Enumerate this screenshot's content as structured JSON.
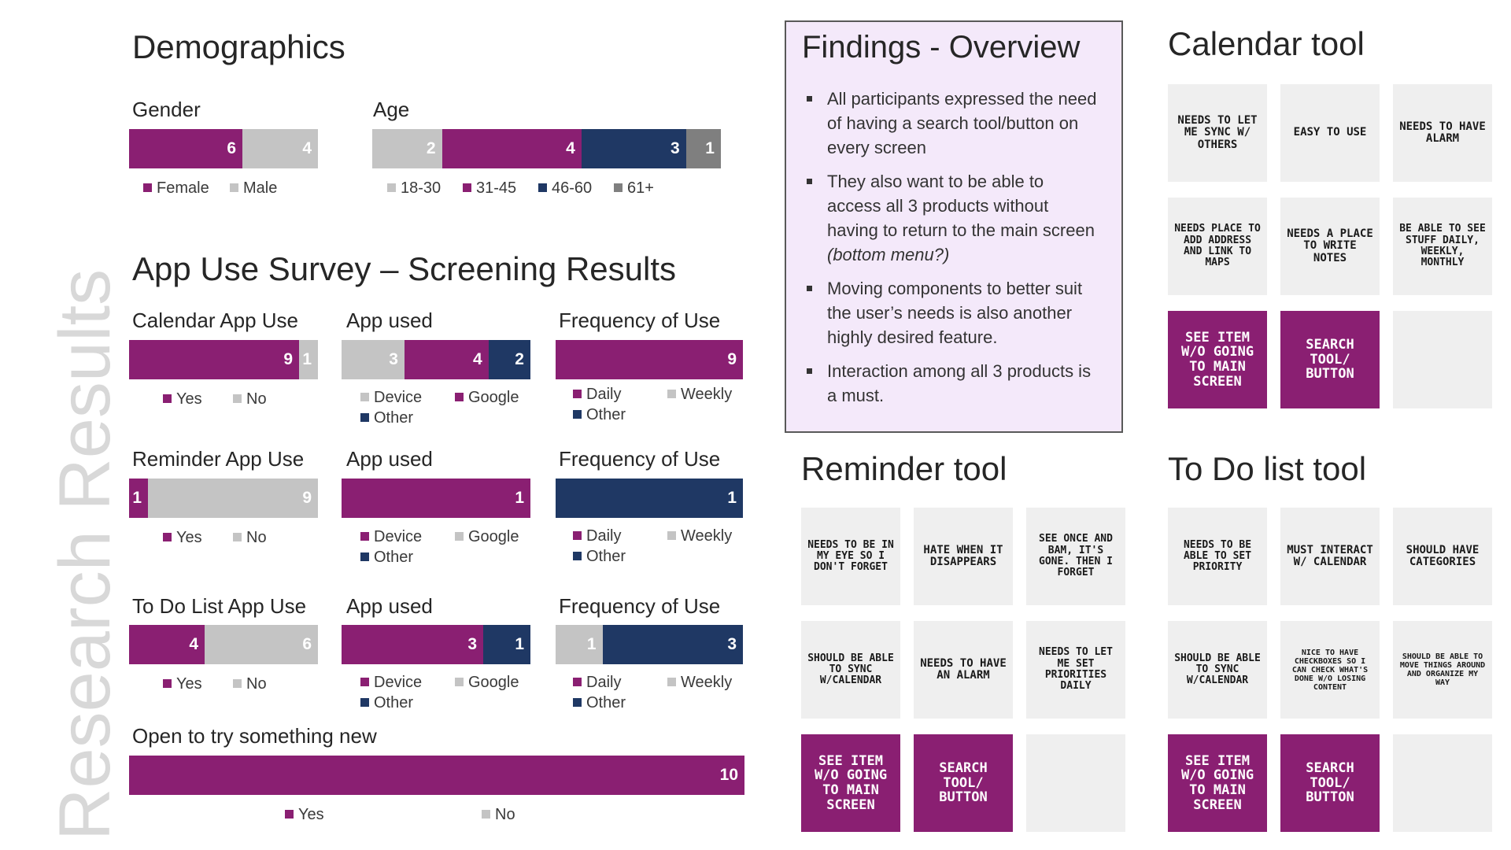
{
  "side_title": "Research Results",
  "demographics": {
    "title": "Demographics",
    "gender": {
      "label": "Gender",
      "segments": [
        {
          "name": "Female",
          "value": 6,
          "color": "#8a1f72"
        },
        {
          "name": "Male",
          "value": 4,
          "color": "#c4c4c4"
        }
      ]
    },
    "age": {
      "label": "Age",
      "segments": [
        {
          "name": "18-30",
          "value": 2,
          "color": "#c4c4c4"
        },
        {
          "name": "31-45",
          "value": 4,
          "color": "#8a1f72"
        },
        {
          "name": "46-60",
          "value": 3,
          "color": "#1f3864"
        },
        {
          "name": "61+",
          "value": 1,
          "color": "#7f7f7f"
        }
      ]
    }
  },
  "survey": {
    "title": "App Use Survey – Screening Results",
    "rows": [
      {
        "use": {
          "label": "Calendar App Use",
          "segments": [
            {
              "name": "Yes",
              "value": 9,
              "color": "#8a1f72"
            },
            {
              "name": "No",
              "value": 1,
              "color": "#c4c4c4"
            }
          ]
        },
        "app": {
          "label": "App used",
          "segments": [
            {
              "name": "Device",
              "value": 3,
              "color": "#c4c4c4"
            },
            {
              "name": "Google",
              "value": 4,
              "color": "#8a1f72"
            },
            {
              "name": "Other",
              "value": 2,
              "color": "#1f3864"
            }
          ]
        },
        "freq": {
          "label": "Frequency of Use",
          "segments": [
            {
              "name": "Daily",
              "value": 9,
              "color": "#8a1f72"
            },
            {
              "name": "Weekly",
              "value": 0,
              "color": "#c4c4c4"
            },
            {
              "name": "Other",
              "value": 0,
              "color": "#1f3864"
            }
          ]
        }
      },
      {
        "use": {
          "label": "Reminder App Use",
          "segments": [
            {
              "name": "Yes",
              "value": 1,
              "color": "#8a1f72"
            },
            {
              "name": "No",
              "value": 9,
              "color": "#c4c4c4"
            }
          ]
        },
        "app": {
          "label": "App used",
          "segments": [
            {
              "name": "Device",
              "value": 1,
              "color": "#8a1f72"
            },
            {
              "name": "Google",
              "value": 0,
              "color": "#c4c4c4"
            },
            {
              "name": "Other",
              "value": 0,
              "color": "#1f3864"
            }
          ]
        },
        "freq": {
          "label": "Frequency of Use",
          "segments": [
            {
              "name": "Daily",
              "value": 0,
              "color": "#8a1f72"
            },
            {
              "name": "Weekly",
              "value": 0,
              "color": "#c4c4c4"
            },
            {
              "name": "Other",
              "value": 1,
              "color": "#1f3864"
            }
          ]
        }
      },
      {
        "use": {
          "label": "To Do List  App Use",
          "segments": [
            {
              "name": "Yes",
              "value": 4,
              "color": "#8a1f72"
            },
            {
              "name": "No",
              "value": 6,
              "color": "#c4c4c4"
            }
          ]
        },
        "app": {
          "label": "App used",
          "segments": [
            {
              "name": "Device",
              "value": 3,
              "color": "#8a1f72"
            },
            {
              "name": "Google",
              "value": 0,
              "color": "#c4c4c4"
            },
            {
              "name": "Other",
              "value": 1,
              "color": "#1f3864"
            }
          ]
        },
        "freq": {
          "label": "Frequency of Use",
          "segments": [
            {
              "name": "Daily",
              "value": 0,
              "color": "#8a1f72"
            },
            {
              "name": "Weekly",
              "value": 1,
              "color": "#c4c4c4"
            },
            {
              "name": "Other",
              "value": 3,
              "color": "#1f3864"
            }
          ]
        }
      }
    ],
    "open": {
      "label": "Open to try something new",
      "segments": [
        {
          "name": "Yes",
          "value": 10,
          "color": "#8a1f72"
        },
        {
          "name": "No",
          "value": 0,
          "color": "#c4c4c4"
        }
      ]
    }
  },
  "findings": {
    "title": "Findings - Overview",
    "items": [
      {
        "text": "All participants expressed the need of having a search tool/button on every screen",
        "em": ""
      },
      {
        "text": "They also want to be able to access all 3 products without having to return to the main screen ",
        "em": "(bottom menu?)"
      },
      {
        "text": "Moving components to better suit the user’s needs is also another highly desired feature.",
        "em": ""
      },
      {
        "text": "Interaction among all 3 products is a must.",
        "em": ""
      }
    ]
  },
  "tools": [
    {
      "title": "Calendar tool",
      "notes": [
        {
          "text": "Needs to let me sync w/ others",
          "highlight": false
        },
        {
          "text": "Easy to use",
          "highlight": false
        },
        {
          "text": "Needs to have alarm",
          "highlight": false
        },
        {
          "text": "Needs place to add address and link to maps",
          "highlight": false
        },
        {
          "text": "Needs a place to write notes",
          "highlight": false
        },
        {
          "text": "Be able to see stuff daily, weekly, monthly",
          "highlight": false
        },
        {
          "text": "See item w/o going to main screen",
          "highlight": true
        },
        {
          "text": "Search tool/ button",
          "highlight": true
        },
        {
          "text": "",
          "highlight": false
        }
      ]
    },
    {
      "title": "Reminder tool",
      "notes": [
        {
          "text": "Needs to be in my eye so I don't forget",
          "highlight": false
        },
        {
          "text": "Hate when it disappears",
          "highlight": false
        },
        {
          "text": "See once and bam, it's gone. Then I forget",
          "highlight": false
        },
        {
          "text": "Should be able to sync w/calendar",
          "highlight": false
        },
        {
          "text": "Needs to have an alarm",
          "highlight": false
        },
        {
          "text": "Needs to let me set priorities daily",
          "highlight": false
        },
        {
          "text": "See item w/o going to main screen",
          "highlight": true
        },
        {
          "text": "Search tool/ button",
          "highlight": true
        },
        {
          "text": "",
          "highlight": false
        }
      ]
    },
    {
      "title": "To Do list tool",
      "notes": [
        {
          "text": "Needs to be able to set priority",
          "highlight": false
        },
        {
          "text": "Must interact w/ calendar",
          "highlight": false
        },
        {
          "text": "Should have categories",
          "highlight": false
        },
        {
          "text": "Should be able to sync w/calendar",
          "highlight": false
        },
        {
          "text": "Nice to have checkboxes so I can check what's done w/o losing content",
          "highlight": false
        },
        {
          "text": "Should be able to move things around and organize my way",
          "highlight": false
        },
        {
          "text": "See item w/o going to main screen",
          "highlight": true
        },
        {
          "text": "Search tool/ button",
          "highlight": true
        },
        {
          "text": "",
          "highlight": false
        }
      ]
    }
  ],
  "chart_data": [
    {
      "type": "bar",
      "title": "Gender",
      "categories": [
        "Female",
        "Male"
      ],
      "values": [
        6,
        4
      ]
    },
    {
      "type": "bar",
      "title": "Age",
      "categories": [
        "18-30",
        "31-45",
        "46-60",
        "61+"
      ],
      "values": [
        2,
        4,
        3,
        1
      ]
    },
    {
      "type": "bar",
      "title": "Calendar App Use",
      "categories": [
        "Yes",
        "No"
      ],
      "values": [
        9,
        1
      ]
    },
    {
      "type": "bar",
      "title": "App used",
      "categories": [
        "Device",
        "Google",
        "Other"
      ],
      "values": [
        3,
        4,
        2
      ]
    },
    {
      "type": "bar",
      "title": "Frequency of Use",
      "categories": [
        "Daily",
        "Weekly",
        "Other"
      ],
      "values": [
        9,
        0,
        0
      ]
    },
    {
      "type": "bar",
      "title": "Reminder App Use",
      "categories": [
        "Yes",
        "No"
      ],
      "values": [
        1,
        9
      ]
    },
    {
      "type": "bar",
      "title": "App used",
      "categories": [
        "Device",
        "Google",
        "Other"
      ],
      "values": [
        1,
        0,
        0
      ]
    },
    {
      "type": "bar",
      "title": "Frequency of Use",
      "categories": [
        "Daily",
        "Weekly",
        "Other"
      ],
      "values": [
        0,
        0,
        1
      ]
    },
    {
      "type": "bar",
      "title": "To Do List  App Use",
      "categories": [
        "Yes",
        "No"
      ],
      "values": [
        4,
        6
      ]
    },
    {
      "type": "bar",
      "title": "App used",
      "categories": [
        "Device",
        "Google",
        "Other"
      ],
      "values": [
        3,
        0,
        1
      ]
    },
    {
      "type": "bar",
      "title": "Frequency of Use",
      "categories": [
        "Daily",
        "Weekly",
        "Other"
      ],
      "values": [
        0,
        1,
        3
      ]
    },
    {
      "type": "bar",
      "title": "Open to try something new",
      "categories": [
        "Yes",
        "No"
      ],
      "values": [
        10,
        0
      ]
    }
  ]
}
